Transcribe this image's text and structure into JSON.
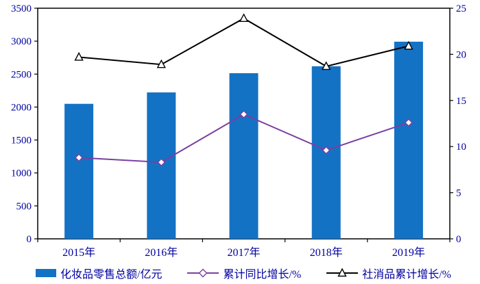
{
  "chart_data": {
    "type": "combo-bar-line",
    "title": "",
    "categories": [
      "2015年",
      "2016年",
      "2017年",
      "2018年",
      "2019年"
    ],
    "bar_series": {
      "name": "化妆品零售总额/亿元",
      "axis": "left",
      "values": [
        2049,
        2222,
        2514,
        2619,
        2992
      ],
      "color": "#1472C4"
    },
    "line_series": [
      {
        "name": "累计同比增长/%",
        "axis": "right",
        "values": [
          8.8,
          8.3,
          13.5,
          9.6,
          12.6
        ],
        "color": "#7B3FA0",
        "marker": "diamond",
        "marker_fill": "#FFFFFF"
      },
      {
        "name": "社消品累计增长/%",
        "axis": "right",
        "values": [
          19.7,
          18.9,
          23.9,
          18.7,
          20.9
        ],
        "color": "#000000",
        "marker": "triangle-up",
        "marker_fill": "#FFFFFF"
      }
    ],
    "left_axis": {
      "min": 0,
      "max": 3500,
      "tick_step": 500,
      "tick_labels": [
        "0",
        "500",
        "1000",
        "1500",
        "2000",
        "2500",
        "3000",
        "3500"
      ]
    },
    "right_axis": {
      "min": 0,
      "max": 25,
      "tick_step": 5,
      "tick_labels": [
        "0",
        "5",
        "10",
        "15",
        "20",
        "25"
      ]
    },
    "grid": false,
    "legend_position": "bottom"
  },
  "legend": {
    "items": [
      {
        "label": "化妆品零售总额/亿元",
        "type": "bar-swatch"
      },
      {
        "label": "累计同比增长/%",
        "type": "line-diamond"
      },
      {
        "label": "社消品累计增长/%",
        "type": "line-triangle"
      }
    ]
  },
  "style": {
    "axis_text_color": "#0000A0",
    "plot_border_color": "#000000",
    "background": "#FFFFFF"
  }
}
